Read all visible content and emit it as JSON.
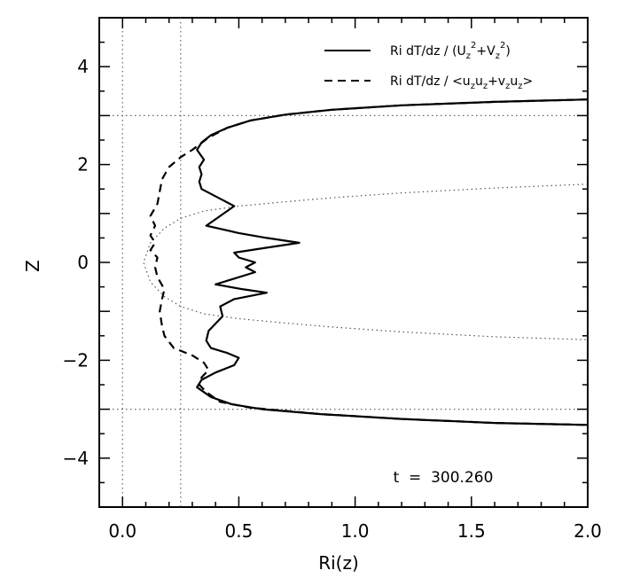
{
  "chart_data": {
    "type": "line",
    "title": "",
    "xlabel": "Ri(z)",
    "ylabel": "Z",
    "xlim": [
      -0.1,
      2.0
    ],
    "ylim": [
      -5,
      5
    ],
    "x_ticks": [
      0.0,
      0.5,
      1.0,
      1.5,
      2.0
    ],
    "x_tick_labels": [
      "0.0",
      "0.5",
      "1.0",
      "1.5",
      "2.0"
    ],
    "y_ticks": [
      -4,
      -2,
      0,
      2,
      4
    ],
    "y_tick_labels": [
      "−4",
      "−2",
      "0",
      "2",
      "4"
    ],
    "grid": false,
    "legend_position": "top-right",
    "legend_entries": [
      {
        "parts": [
          "Ri dT/dz / (U",
          "z",
          "2",
          "+V",
          "z",
          "2",
          ")"
        ]
      },
      {
        "parts": [
          "Ri dT/dz / <u",
          "z",
          "u",
          "z",
          "+v",
          "z",
          "u",
          "z",
          ">"
        ]
      }
    ],
    "annotation": "t  =  300.260",
    "series": [
      {
        "style": "solid",
        "points": [
          [
            2.0,
            3.33
          ],
          [
            1.6,
            3.28
          ],
          [
            1.2,
            3.21
          ],
          [
            0.9,
            3.12
          ],
          [
            0.7,
            3.02
          ],
          [
            0.55,
            2.9
          ],
          [
            0.45,
            2.75
          ],
          [
            0.38,
            2.6
          ],
          [
            0.34,
            2.45
          ],
          [
            0.32,
            2.3
          ],
          [
            0.35,
            2.1
          ],
          [
            0.33,
            1.95
          ],
          [
            0.34,
            1.8
          ],
          [
            0.33,
            1.65
          ],
          [
            0.34,
            1.5
          ],
          [
            0.42,
            1.3
          ],
          [
            0.48,
            1.15
          ],
          [
            0.42,
            0.95
          ],
          [
            0.36,
            0.75
          ],
          [
            0.5,
            0.6
          ],
          [
            0.62,
            0.5
          ],
          [
            0.76,
            0.4
          ],
          [
            0.62,
            0.3
          ],
          [
            0.48,
            0.2
          ],
          [
            0.5,
            0.1
          ],
          [
            0.57,
            0.0
          ],
          [
            0.53,
            -0.1
          ],
          [
            0.57,
            -0.2
          ],
          [
            0.4,
            -0.45
          ],
          [
            0.52,
            -0.55
          ],
          [
            0.62,
            -0.62
          ],
          [
            0.48,
            -0.75
          ],
          [
            0.42,
            -0.9
          ],
          [
            0.43,
            -1.1
          ],
          [
            0.4,
            -1.25
          ],
          [
            0.37,
            -1.4
          ],
          [
            0.36,
            -1.6
          ],
          [
            0.38,
            -1.75
          ],
          [
            0.45,
            -1.85
          ],
          [
            0.5,
            -1.95
          ],
          [
            0.48,
            -2.1
          ],
          [
            0.4,
            -2.25
          ],
          [
            0.34,
            -2.4
          ],
          [
            0.32,
            -2.55
          ],
          [
            0.38,
            -2.75
          ],
          [
            0.47,
            -2.9
          ],
          [
            0.6,
            -3.0
          ],
          [
            0.85,
            -3.1
          ],
          [
            1.2,
            -3.2
          ],
          [
            1.6,
            -3.28
          ],
          [
            2.0,
            -3.32
          ]
        ]
      },
      {
        "style": "dashed",
        "points": [
          [
            2.0,
            3.33
          ],
          [
            1.6,
            3.28
          ],
          [
            1.2,
            3.21
          ],
          [
            0.9,
            3.12
          ],
          [
            0.7,
            3.02
          ],
          [
            0.55,
            2.9
          ],
          [
            0.45,
            2.75
          ],
          [
            0.37,
            2.55
          ],
          [
            0.3,
            2.3
          ],
          [
            0.25,
            2.15
          ],
          [
            0.2,
            1.95
          ],
          [
            0.17,
            1.7
          ],
          [
            0.16,
            1.45
          ],
          [
            0.15,
            1.2
          ],
          [
            0.12,
            0.95
          ],
          [
            0.14,
            0.75
          ],
          [
            0.12,
            0.55
          ],
          [
            0.14,
            0.4
          ],
          [
            0.12,
            0.25
          ],
          [
            0.15,
            0.1
          ],
          [
            0.14,
            -0.1
          ],
          [
            0.15,
            -0.3
          ],
          [
            0.18,
            -0.55
          ],
          [
            0.17,
            -0.75
          ],
          [
            0.16,
            -1.0
          ],
          [
            0.17,
            -1.3
          ],
          [
            0.18,
            -1.5
          ],
          [
            0.22,
            -1.75
          ],
          [
            0.3,
            -1.9
          ],
          [
            0.35,
            -2.05
          ],
          [
            0.37,
            -2.2
          ],
          [
            0.34,
            -2.35
          ],
          [
            0.33,
            -2.5
          ],
          [
            0.36,
            -2.65
          ],
          [
            0.42,
            -2.85
          ],
          [
            0.55,
            -2.97
          ],
          [
            0.85,
            -3.1
          ],
          [
            1.2,
            -3.2
          ],
          [
            1.6,
            -3.28
          ],
          [
            2.0,
            -3.32
          ]
        ]
      }
    ],
    "reference_curve": {
      "style": "dotted",
      "points": [
        [
          2.0,
          1.6
        ],
        [
          1.6,
          1.52
        ],
        [
          1.2,
          1.42
        ],
        [
          0.9,
          1.32
        ],
        [
          0.7,
          1.24
        ],
        [
          0.5,
          1.15
        ],
        [
          0.35,
          1.05
        ],
        [
          0.25,
          0.9
        ],
        [
          0.18,
          0.7
        ],
        [
          0.12,
          0.4
        ],
        [
          0.09,
          0.0
        ],
        [
          0.12,
          -0.4
        ],
        [
          0.18,
          -0.7
        ],
        [
          0.25,
          -0.9
        ],
        [
          0.35,
          -1.05
        ],
        [
          0.5,
          -1.15
        ],
        [
          0.7,
          -1.24
        ],
        [
          0.9,
          -1.32
        ],
        [
          1.2,
          -1.42
        ],
        [
          1.6,
          -1.52
        ],
        [
          2.0,
          -1.58
        ]
      ]
    },
    "reference_lines": {
      "vertical_x": [
        0.0,
        0.25
      ],
      "horizontal_y": [
        3.0,
        -3.0
      ]
    }
  }
}
